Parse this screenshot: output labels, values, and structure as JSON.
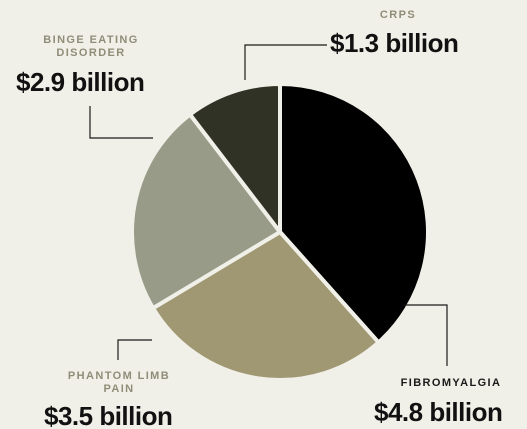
{
  "chart_data": {
    "type": "pie",
    "slices": [
      {
        "name": "FIBROMYALGIA",
        "value": 4.8,
        "value_label": "$4.8 billion",
        "color": "#000000"
      },
      {
        "name": "PHANTOM LIMB PAIN",
        "value": 3.5,
        "value_label": "$3.5 billion",
        "color": "#a09773"
      },
      {
        "name": "BINGE EATING DISORDER",
        "value": 2.9,
        "value_label": "$2.9 billion",
        "color": "#979b88"
      },
      {
        "name": "CRPS",
        "value": 1.3,
        "value_label": "$1.3 billion",
        "color": "#303226"
      }
    ],
    "start": "12 o'clock",
    "direction": "clockwise",
    "separator_color": "#f1f0e8"
  },
  "labels": {
    "crps_name": "CRPS",
    "crps_value": "$1.3 billion",
    "binge_name": "BINGE EATING DISORDER",
    "binge_value": "$2.9 billion",
    "phantom_name": "PHANTOM LIMB PAIN",
    "phantom_value": "$3.5 billion",
    "fibro_name": "FIBROMYALGIA",
    "fibro_value": "$4.8 billion"
  }
}
